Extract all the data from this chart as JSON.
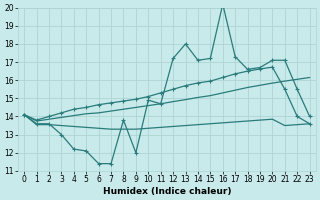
{
  "xlabel": "Humidex (Indice chaleur)",
  "x": [
    0,
    1,
    2,
    3,
    4,
    5,
    6,
    7,
    8,
    9,
    10,
    11,
    12,
    13,
    14,
    15,
    16,
    17,
    18,
    19,
    20,
    21,
    22,
    23
  ],
  "line1": [
    14.1,
    13.6,
    13.6,
    13.0,
    12.2,
    12.1,
    11.4,
    11.4,
    13.8,
    12.0,
    14.9,
    14.7,
    17.2,
    18.0,
    17.1,
    17.2,
    20.2,
    17.3,
    16.6,
    16.7,
    17.1,
    17.1,
    15.5,
    14.0
  ],
  "line2": [
    14.1,
    13.55,
    13.55,
    13.5,
    13.45,
    13.4,
    13.35,
    13.3,
    13.3,
    13.3,
    13.35,
    13.4,
    13.45,
    13.5,
    13.55,
    13.6,
    13.65,
    13.7,
    13.75,
    13.8,
    13.85,
    13.5,
    13.55,
    13.6
  ],
  "line3": [
    14.1,
    13.75,
    13.85,
    13.95,
    14.05,
    14.15,
    14.2,
    14.3,
    14.4,
    14.5,
    14.6,
    14.7,
    14.82,
    14.93,
    15.05,
    15.15,
    15.3,
    15.45,
    15.6,
    15.72,
    15.84,
    15.95,
    16.05,
    16.15
  ],
  "line4": [
    14.1,
    13.8,
    14.0,
    14.2,
    14.4,
    14.5,
    14.65,
    14.75,
    14.85,
    14.95,
    15.1,
    15.3,
    15.5,
    15.7,
    15.85,
    15.95,
    16.15,
    16.35,
    16.5,
    16.62,
    16.72,
    15.5,
    14.0,
    13.6
  ],
  "line_color": "#2a7b7b",
  "bg_color": "#c8eaea",
  "grid_color": "#aed4d4",
  "ylim": [
    11,
    20
  ],
  "xlim": [
    -0.5,
    23.5
  ],
  "yticks": [
    11,
    12,
    13,
    14,
    15,
    16,
    17,
    18,
    19,
    20
  ],
  "xticks": [
    0,
    1,
    2,
    3,
    4,
    5,
    6,
    7,
    8,
    9,
    10,
    11,
    12,
    13,
    14,
    15,
    16,
    17,
    18,
    19,
    20,
    21,
    22,
    23
  ],
  "tick_fontsize": 5.5,
  "xlabel_fontsize": 6.5
}
